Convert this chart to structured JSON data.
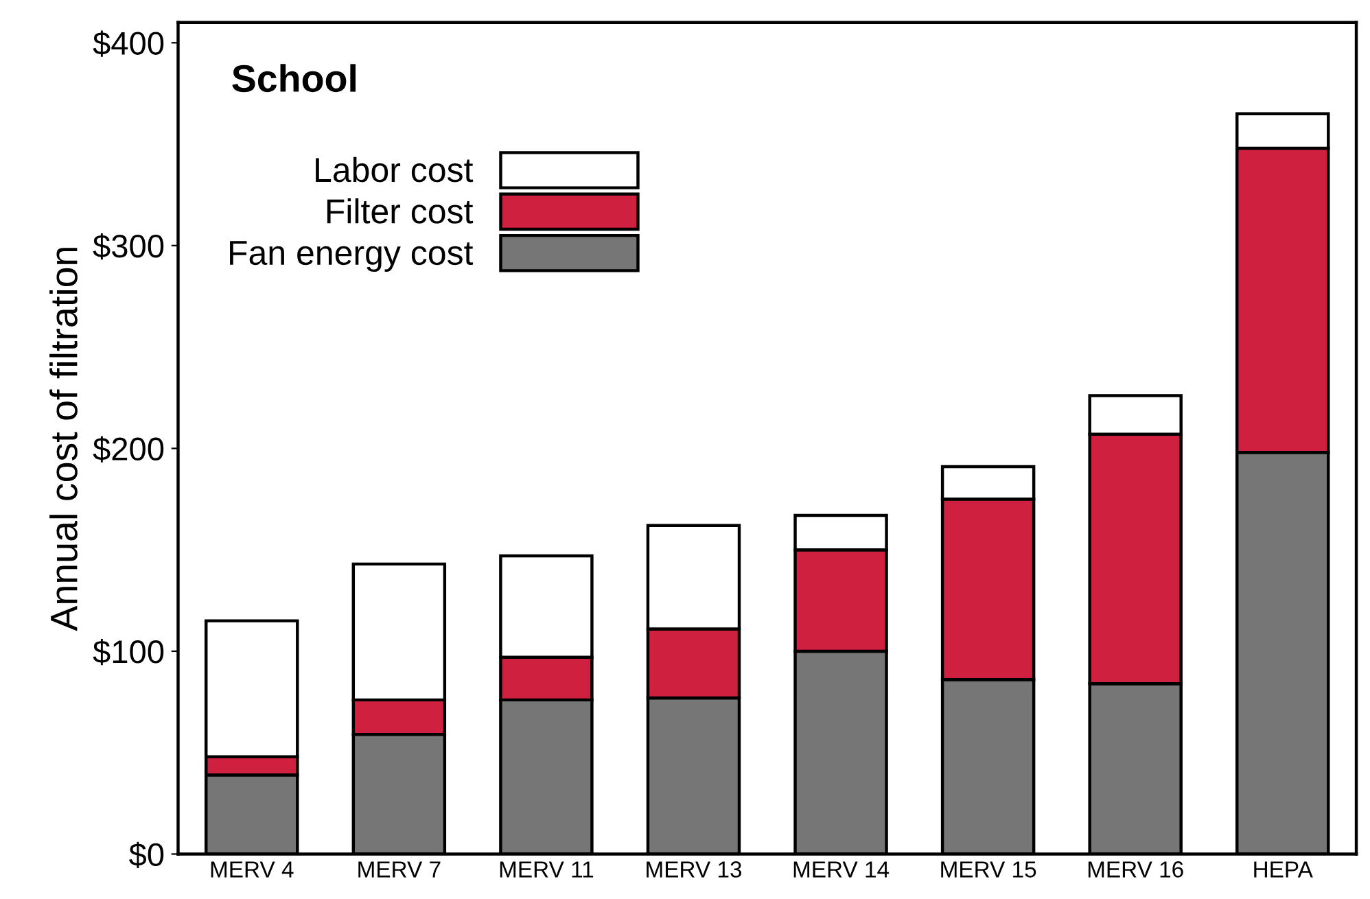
{
  "chart_data": {
    "type": "bar",
    "title": "School",
    "ylabel": "Annual cost of filtration",
    "stacked": true,
    "legend": "top left",
    "grid": false,
    "categories": [
      "MERV 4",
      "MERV 7",
      "MERV 11",
      "MERV 13",
      "MERV 14",
      "MERV 15",
      "MERV 16",
      "HEPA"
    ],
    "series": [
      {
        "name": "Fan energy cost",
        "color": "#767676",
        "values": [
          39,
          59,
          76,
          77,
          100,
          86,
          84,
          198
        ]
      },
      {
        "name": "Filter cost",
        "color": "#d02040",
        "values": [
          9,
          17,
          21,
          34,
          50,
          89,
          123,
          150
        ]
      },
      {
        "name": "Labor cost",
        "color": "#ffffff",
        "values": [
          67,
          67,
          50,
          51,
          17,
          16,
          19,
          17
        ]
      }
    ],
    "ylim": [
      0,
      410
    ],
    "yticks": [
      {
        "value": 0,
        "label": "$0"
      },
      {
        "value": 100,
        "label": "$100"
      },
      {
        "value": 200,
        "label": "$200"
      },
      {
        "value": 300,
        "label": "$300"
      },
      {
        "value": 400,
        "label": "$400"
      }
    ]
  }
}
